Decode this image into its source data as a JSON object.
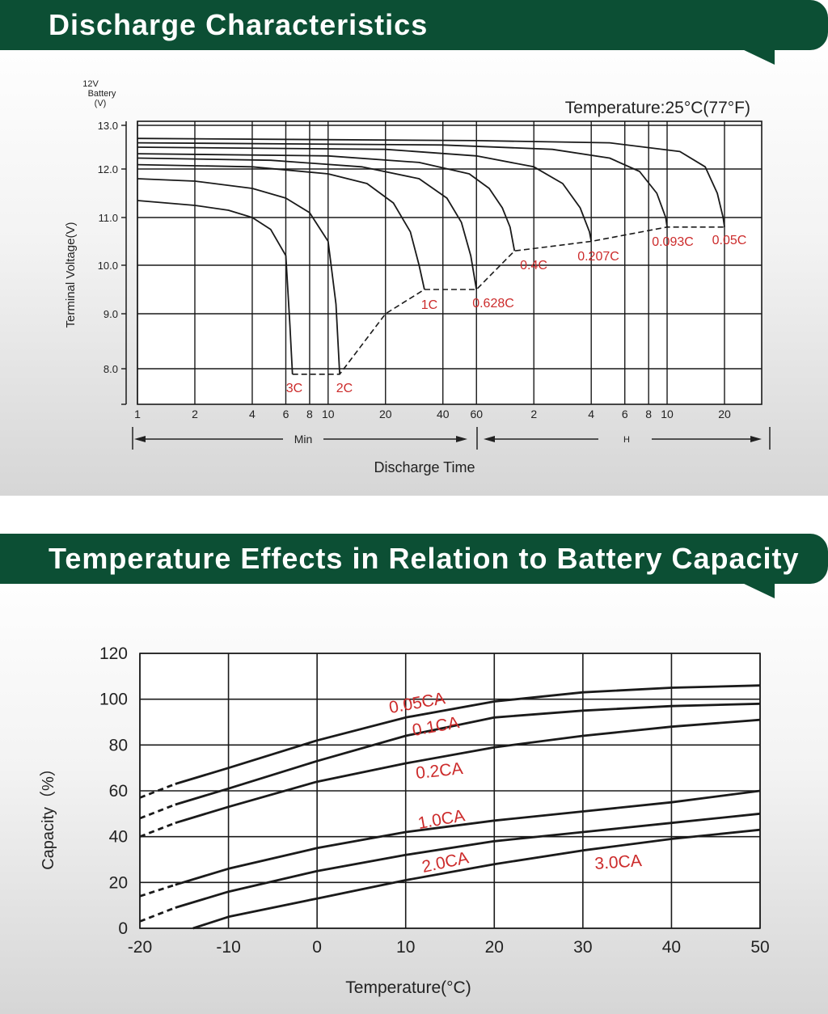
{
  "sections": [
    {
      "title": "Discharge Characteristics"
    },
    {
      "title": "Temperature Effects in Relation to Battery Capacity"
    }
  ],
  "colors": {
    "banner": "#0c4f34",
    "curve": "#1a1a1a",
    "label": "#cc2b2b",
    "grid": "#1a1a1a"
  },
  "chart_data": [
    {
      "type": "line",
      "title": "Discharge Characteristics",
      "subtitle": "Temperature:25°C(77°F)",
      "ylabel_top": [
        "12V",
        "Battery",
        "(V)"
      ],
      "ylabel": "Terminal Voltage(V)",
      "xlabel": "Discharge Time",
      "x_scale": "log",
      "x_unit_min_label": "Min",
      "x_unit_hour_label": "H",
      "x_ticks": [
        "1",
        "2",
        "4",
        "6",
        "8",
        "10",
        "20",
        "40",
        "60",
        "2",
        "4",
        "6",
        "8",
        "10",
        "20"
      ],
      "x_tick_minutes": [
        1,
        2,
        4,
        6,
        8,
        10,
        20,
        40,
        60,
        120,
        240,
        360,
        480,
        600,
        1200
      ],
      "y_ticks": [
        "13.0",
        "12.0",
        "11.0",
        "10.0",
        "9.0",
        "8.0"
      ],
      "ylim": [
        7.3,
        13.0
      ],
      "grid": true,
      "series": [
        {
          "name": "3C",
          "start_v": 11.35,
          "end_min": 6.5,
          "end_v": 7.9,
          "x": [
            1,
            2,
            3,
            4,
            5,
            6,
            6.3,
            6.5
          ],
          "y": [
            11.35,
            11.25,
            11.15,
            11.0,
            10.75,
            10.2,
            8.8,
            7.9
          ]
        },
        {
          "name": "2C",
          "start_v": 11.8,
          "end_min": 11.5,
          "end_v": 7.9,
          "x": [
            1,
            2,
            4,
            6,
            8,
            10,
            11,
            11.5
          ],
          "y": [
            11.8,
            11.75,
            11.6,
            11.4,
            11.1,
            10.5,
            9.2,
            7.9
          ]
        },
        {
          "name": "1C",
          "start_v": 12.1,
          "end_min": 32,
          "end_v": 9.5,
          "x": [
            1,
            4,
            10,
            16,
            22,
            27,
            30,
            32
          ],
          "y": [
            12.1,
            12.05,
            11.9,
            11.7,
            11.3,
            10.7,
            10.0,
            9.5
          ]
        },
        {
          "name": "0.628C",
          "start_v": 12.25,
          "end_min": 60,
          "end_v": 9.5,
          "x": [
            1,
            5,
            15,
            30,
            42,
            50,
            56,
            60
          ],
          "y": [
            12.25,
            12.2,
            12.05,
            11.8,
            11.4,
            10.9,
            10.2,
            9.5
          ]
        },
        {
          "name": "0.4C",
          "start_v": 12.35,
          "end_min": 95,
          "end_v": 10.3,
          "x": [
            1,
            10,
            30,
            55,
            70,
            82,
            90,
            95
          ],
          "y": [
            12.35,
            12.3,
            12.15,
            11.9,
            11.6,
            11.2,
            10.8,
            10.3
          ]
        },
        {
          "name": "0.207C",
          "start_v": 12.5,
          "end_min": 240,
          "end_v": 10.5,
          "x": [
            1,
            20,
            60,
            120,
            170,
            210,
            235,
            240
          ],
          "y": [
            12.5,
            12.45,
            12.3,
            12.05,
            11.7,
            11.2,
            10.7,
            10.5
          ]
        },
        {
          "name": "0.093C",
          "start_v": 12.6,
          "end_min": 600,
          "end_v": 10.8,
          "x": [
            1,
            40,
            150,
            300,
            430,
            530,
            590,
            600
          ],
          "y": [
            12.6,
            12.55,
            12.45,
            12.25,
            11.95,
            11.5,
            11.0,
            10.8
          ]
        },
        {
          "name": "0.05C",
          "start_v": 12.7,
          "end_min": 1200,
          "end_v": 10.8,
          "x": [
            1,
            60,
            300,
            700,
            950,
            1100,
            1180,
            1200
          ],
          "y": [
            12.7,
            12.65,
            12.6,
            12.4,
            12.05,
            11.5,
            11.0,
            10.8
          ]
        }
      ],
      "cutoff_line": {
        "x": [
          6.5,
          11.5,
          20,
          32,
          60,
          95,
          240,
          600,
          1200
        ],
        "y": [
          7.9,
          7.9,
          9.0,
          9.5,
          9.5,
          10.3,
          10.5,
          10.8,
          10.8
        ]
      }
    },
    {
      "type": "line",
      "title": "Temperature Effects in Relation to Battery Capacity",
      "xlabel": "Temperature(°C)",
      "ylabel": "Capacity（%）",
      "x_ticks": [
        "-20",
        "-10",
        "0",
        "10",
        "20",
        "30",
        "40",
        "50"
      ],
      "y_ticks": [
        "120",
        "100",
        "80",
        "60",
        "40",
        "20",
        "0"
      ],
      "xlim": [
        -20,
        50
      ],
      "ylim": [
        0,
        120
      ],
      "grid": true,
      "series": [
        {
          "name": "0.05CA",
          "x": [
            -20,
            -16,
            -10,
            0,
            10,
            20,
            30,
            40,
            50
          ],
          "y": [
            57,
            63,
            70,
            82,
            92,
            99,
            103,
            105,
            106
          ]
        },
        {
          "name": "0.1CA",
          "x": [
            -20,
            -16,
            -10,
            0,
            10,
            20,
            30,
            40,
            50
          ],
          "y": [
            48,
            54,
            61,
            73,
            84,
            92,
            95,
            97,
            98
          ]
        },
        {
          "name": "0.2CA",
          "x": [
            -20,
            -16,
            -10,
            0,
            10,
            20,
            30,
            40,
            50
          ],
          "y": [
            40,
            46,
            53,
            64,
            72,
            79,
            84,
            88,
            91
          ]
        },
        {
          "name": "1.0CA",
          "x": [
            -20,
            -16,
            -10,
            0,
            10,
            20,
            30,
            40,
            50
          ],
          "y": [
            14,
            19,
            26,
            35,
            42,
            47,
            51,
            55,
            60
          ]
        },
        {
          "name": "2.0CA",
          "x": [
            -20,
            -16,
            -10,
            0,
            10,
            20,
            30,
            40,
            50
          ],
          "y": [
            3,
            9,
            16,
            25,
            32,
            38,
            42,
            46,
            50
          ]
        },
        {
          "name": "3.0CA",
          "x": [
            -14,
            -10,
            0,
            10,
            20,
            30,
            40,
            50
          ],
          "y": [
            0,
            5,
            13,
            21,
            28,
            34,
            39,
            43
          ]
        }
      ]
    }
  ]
}
